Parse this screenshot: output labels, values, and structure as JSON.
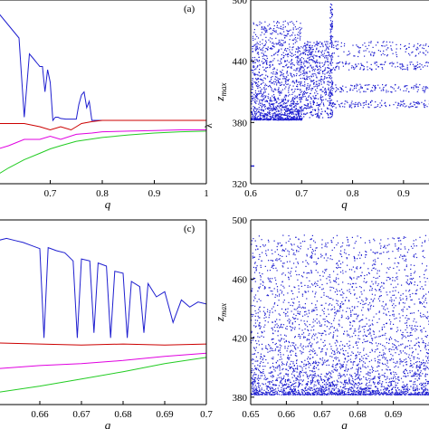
{
  "chart_data": [
    {
      "id": "a",
      "type": "line",
      "panel_label": "(a)",
      "xlabel": "q",
      "ylabel": "",
      "xlim": [
        0.6,
        1.0
      ],
      "x_ticks": [
        "0.7",
        "0.8",
        "0.9",
        "1"
      ],
      "x_tick_values": [
        0.7,
        0.8,
        0.9,
        1.0
      ],
      "y_tick_suffix": "λ",
      "ylim": [
        -1.0,
        1.9
      ],
      "series": [
        {
          "color": "#1f1fd0",
          "x": [
            0.6,
            0.62,
            0.64,
            0.65,
            0.66,
            0.665,
            0.67,
            0.675,
            0.68,
            0.685,
            0.69,
            0.695,
            0.7,
            0.705,
            0.71,
            0.715,
            0.72,
            0.73,
            0.74,
            0.75,
            0.755,
            0.76,
            0.765,
            0.77,
            0.775,
            0.78,
            0.79,
            0.8,
            0.85,
            0.9,
            0.95,
            1.0
          ],
          "y": [
            1.7,
            1.5,
            1.3,
            0.05,
            1.05,
            1.0,
            0.95,
            0.9,
            0.85,
            0.85,
            0.45,
            0.8,
            0.6,
            0.0,
            0.05,
            0.05,
            0.03,
            0.02,
            0.02,
            0.02,
            0.25,
            0.4,
            0.45,
            0.2,
            0.3,
            0.0,
            0.0,
            0.0,
            0.0,
            0.0,
            0.0,
            0.0
          ]
        },
        {
          "color": "#cc0000",
          "x": [
            0.6,
            0.65,
            0.68,
            0.7,
            0.72,
            0.74,
            0.75,
            0.76,
            0.78,
            0.8,
            0.85,
            0.9,
            0.95,
            1.0
          ],
          "y": [
            -0.05,
            -0.05,
            -0.1,
            -0.15,
            -0.1,
            -0.15,
            -0.1,
            -0.05,
            -0.02,
            0.0,
            0.0,
            0.0,
            0.0,
            0.0
          ]
        },
        {
          "color": "#e000e0",
          "x": [
            0.6,
            0.62,
            0.65,
            0.68,
            0.7,
            0.72,
            0.75,
            0.78,
            0.8,
            0.85,
            0.9,
            0.95,
            1.0
          ],
          "y": [
            -0.45,
            -0.4,
            -0.3,
            -0.3,
            -0.25,
            -0.3,
            -0.22,
            -0.2,
            -0.18,
            -0.17,
            -0.16,
            -0.15,
            -0.15
          ]
        },
        {
          "color": "#22cc22",
          "x": [
            0.6,
            0.62,
            0.65,
            0.68,
            0.7,
            0.72,
            0.75,
            0.8,
            0.85,
            0.9,
            0.95,
            1.0
          ],
          "y": [
            -0.85,
            -0.75,
            -0.62,
            -0.52,
            -0.45,
            -0.4,
            -0.33,
            -0.27,
            -0.23,
            -0.2,
            -0.18,
            -0.17
          ]
        }
      ]
    },
    {
      "id": "b",
      "type": "scatter",
      "xlabel": "q",
      "ylabel": "z_max",
      "xlim": [
        0.6,
        0.95
      ],
      "ylim": [
        320,
        500
      ],
      "x_ticks": [
        "0.6",
        "0.7",
        "0.8",
        "0.9"
      ],
      "x_tick_values": [
        0.6,
        0.7,
        0.8,
        0.9
      ],
      "y_ticks": [
        "320",
        "380",
        "440",
        "500"
      ],
      "y_tick_values": [
        320,
        380,
        440,
        500
      ],
      "color": "#1f1fd0",
      "description_regions": [
        {
          "x_range": [
            0.6,
            0.7
          ],
          "y_range": [
            383,
            480
          ],
          "density": "chaotic"
        },
        {
          "x_range": [
            0.7,
            0.755
          ],
          "y_range": [
            385,
            460
          ],
          "density": "period-bands"
        },
        {
          "x_range": [
            0.755,
            0.76
          ],
          "y_range": [
            385,
            497
          ],
          "density": "chaotic-window"
        },
        {
          "x_range": [
            0.76,
            0.95
          ],
          "y_range": [
            [
              395,
              402
            ],
            [
              410,
              418
            ],
            [
              432,
              440
            ],
            [
              445,
              460
            ]
          ],
          "density": "periodic-branches"
        }
      ],
      "isolated_points": [
        [
          0.6,
          338
        ]
      ]
    },
    {
      "id": "c",
      "type": "line",
      "panel_label": "(c)",
      "xlabel": "q",
      "ylabel": "",
      "xlim": [
        0.65,
        0.7
      ],
      "x_ticks": [
        "0.66",
        "0.67",
        "0.68",
        "0.69",
        "0.7"
      ],
      "x_tick_values": [
        0.66,
        0.67,
        0.68,
        0.69,
        0.7
      ],
      "ylim": [
        -0.6,
        1.2
      ],
      "series": [
        {
          "color": "#1f1fd0",
          "x": [
            0.65,
            0.652,
            0.654,
            0.656,
            0.658,
            0.66,
            0.661,
            0.662,
            0.664,
            0.666,
            0.668,
            0.669,
            0.67,
            0.672,
            0.673,
            0.674,
            0.676,
            0.677,
            0.678,
            0.68,
            0.681,
            0.682,
            0.684,
            0.685,
            0.686,
            0.688,
            0.69,
            0.692,
            0.694,
            0.696,
            0.698,
            0.7
          ],
          "y": [
            1.0,
            1.02,
            1.0,
            0.98,
            0.95,
            0.92,
            0.05,
            0.93,
            0.9,
            0.88,
            0.8,
            0.05,
            0.82,
            0.8,
            0.1,
            0.78,
            0.75,
            0.05,
            0.7,
            0.68,
            0.05,
            0.6,
            0.55,
            0.1,
            0.58,
            0.45,
            0.5,
            0.2,
            0.42,
            0.35,
            0.4,
            0.38
          ]
        },
        {
          "color": "#cc0000",
          "x": [
            0.65,
            0.66,
            0.67,
            0.68,
            0.69,
            0.7
          ],
          "y": [
            0.0,
            -0.01,
            -0.02,
            -0.01,
            -0.02,
            -0.01
          ]
        },
        {
          "color": "#e000e0",
          "x": [
            0.65,
            0.66,
            0.67,
            0.68,
            0.69,
            0.7
          ],
          "y": [
            -0.25,
            -0.22,
            -0.2,
            -0.17,
            -0.13,
            -0.1
          ]
        },
        {
          "color": "#22cc22",
          "x": [
            0.65,
            0.66,
            0.67,
            0.68,
            0.69,
            0.7
          ],
          "y": [
            -0.48,
            -0.42,
            -0.35,
            -0.28,
            -0.2,
            -0.14
          ]
        }
      ]
    },
    {
      "id": "d",
      "type": "scatter",
      "xlabel": "q",
      "ylabel": "z_max",
      "xlim": [
        0.65,
        0.7
      ],
      "ylim": [
        375,
        500
      ],
      "x_ticks": [
        "0.65",
        "0.66",
        "0.67",
        "0.68",
        "0.69"
      ],
      "x_tick_values": [
        0.65,
        0.66,
        0.67,
        0.68,
        0.69
      ],
      "y_ticks": [
        "380",
        "420",
        "460",
        "500"
      ],
      "y_tick_values": [
        380,
        420,
        460,
        500
      ],
      "color": "#1f1fd0",
      "description_regions": [
        {
          "x_range": [
            0.65,
            0.7
          ],
          "y_range": [
            382,
            490
          ],
          "density": "chaotic"
        }
      ]
    }
  ]
}
